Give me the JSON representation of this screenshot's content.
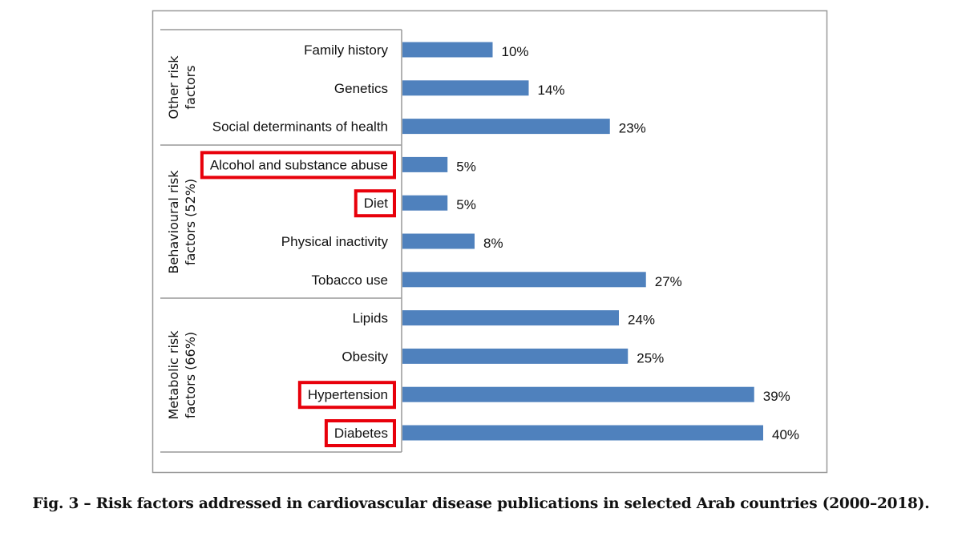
{
  "chart_data": {
    "type": "bar",
    "orientation": "horizontal",
    "title": "",
    "xlabel": "",
    "ylabel": "",
    "xlim": [
      0,
      40
    ],
    "grid": false,
    "bar_color": "#4f81bd",
    "highlight_color": "#e8000b",
    "groups": [
      {
        "label": "Other risk factors",
        "categories": [
          "Family history",
          "Genetics",
          "Social determinants of health"
        ]
      },
      {
        "label": "Behavioural risk factors (52%)",
        "categories": [
          "Alcohol and substance abuse",
          "Diet",
          "Physical inactivity",
          "Tobacco use"
        ]
      },
      {
        "label": "Metabolic risk factors (66%)",
        "categories": [
          "Lipids",
          "Obesity",
          "Hypertension",
          "Diabetes"
        ]
      }
    ],
    "categories": [
      "Family history",
      "Genetics",
      "Social determinants of health",
      "Alcohol and substance abuse",
      "Diet",
      "Physical inactivity",
      "Tobacco use",
      "Lipids",
      "Obesity",
      "Hypertension",
      "Diabetes"
    ],
    "values": [
      10,
      14,
      23,
      5,
      5,
      8,
      27,
      24,
      25,
      39,
      40
    ],
    "data_labels": [
      "10%",
      "14%",
      "23%",
      "5%",
      "5%",
      "8%",
      "27%",
      "24%",
      "25%",
      "39%",
      "40%"
    ],
    "highlighted": [
      "Alcohol and substance abuse",
      "Diet",
      "Hypertension",
      "Diabetes"
    ],
    "group_labels_wrapped": [
      [
        "Other risk",
        "factors"
      ],
      [
        "Behavioural risk",
        "factors  (52%)"
      ],
      [
        "Metabolic risk",
        "factors  (66%)"
      ]
    ]
  },
  "caption": "Fig. 3 – Risk factors addressed in cardiovascular disease publications in selected Arab countries (2000–2018)."
}
